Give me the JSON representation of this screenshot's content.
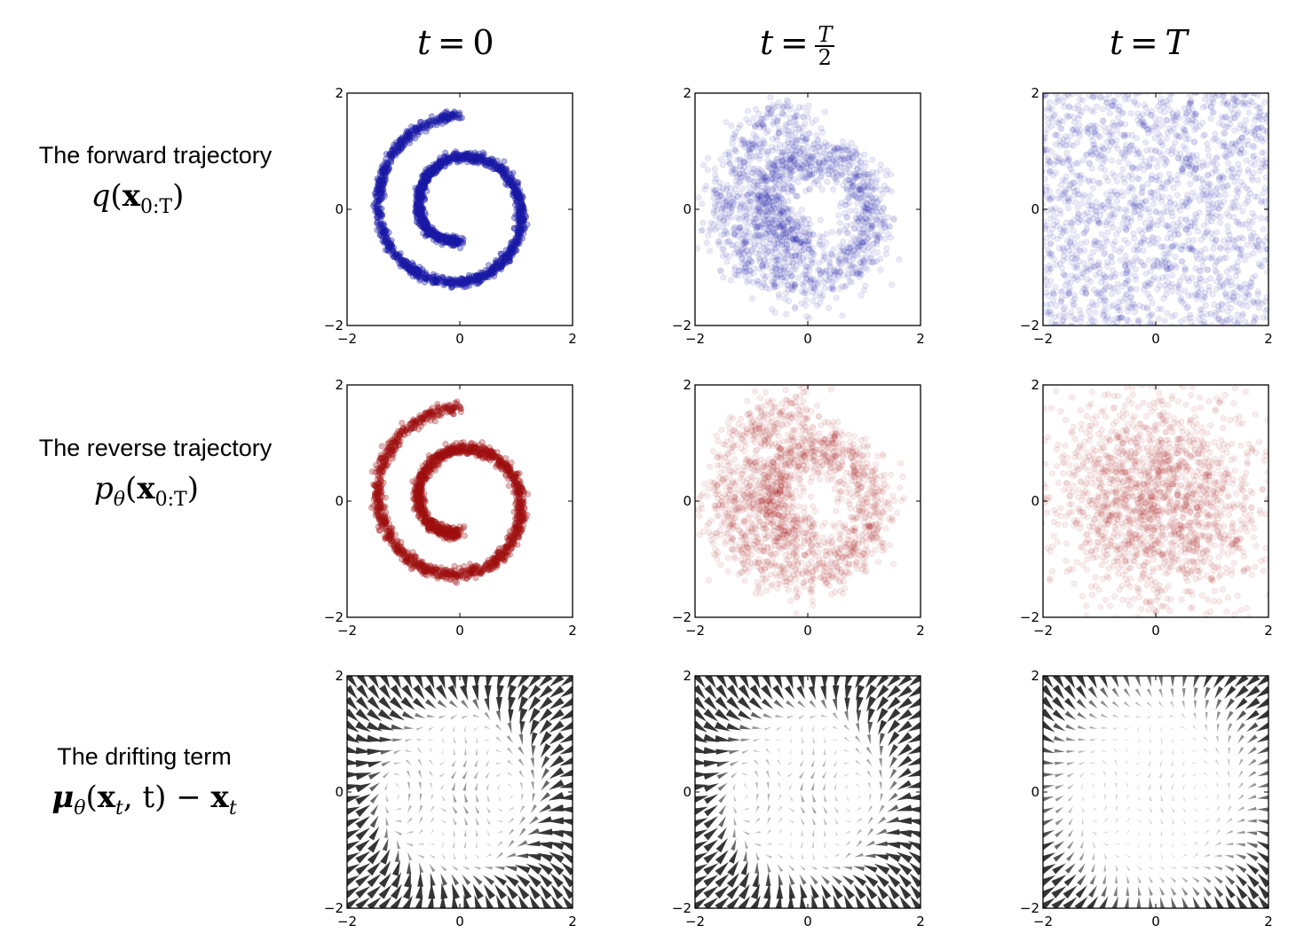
{
  "columns": [
    {
      "id": "t0",
      "var": "t",
      "eq": "=",
      "val": "0"
    },
    {
      "id": "thalf",
      "var": "t",
      "eq": "=",
      "frac_num": "T",
      "frac_den": "2"
    },
    {
      "id": "tT",
      "var": "t",
      "eq": "=",
      "val": "T"
    }
  ],
  "rows": [
    {
      "id": "forward",
      "label": "The forward trajectory",
      "math_fn": "q",
      "math_bold": "x",
      "math_sub": "0:T"
    },
    {
      "id": "reverse",
      "label": "The reverse trajectory",
      "math_fn": "p",
      "math_fn_sub": "θ",
      "math_bold": "x",
      "math_sub": "0:T"
    },
    {
      "id": "drift",
      "label": "The drifting term",
      "math_mu": "μ",
      "math_mu_sub": "θ",
      "math_bold": "x",
      "math_sub": "t",
      "math_args": ", t) − ",
      "math_bold2": "x",
      "math_sub2": "t"
    }
  ],
  "axis": {
    "xlim": [
      -2,
      2
    ],
    "ylim": [
      -2,
      2
    ],
    "xticks": [
      "−2",
      "0",
      "2"
    ],
    "yticks": [
      "−2",
      "0",
      "2"
    ],
    "xtick_values": [
      -2,
      0,
      2
    ],
    "ytick_values": [
      -2,
      0,
      2
    ]
  },
  "colors": {
    "forward": "#1a1aa6",
    "reverse": "#a01010",
    "drift": "#2a2a2a",
    "axes": "#000000"
  },
  "chart_data": [
    {
      "type": "scatter",
      "row": "forward",
      "col": "t = 0",
      "distribution": "swiss-roll spiral",
      "noise_sd": 0.04,
      "n_points": 1800,
      "point_alpha": 0.35
    },
    {
      "type": "scatter",
      "row": "forward",
      "col": "t = T/2",
      "distribution": "noisy swiss-roll spiral",
      "noise_sd": 0.22,
      "n_points": 1800,
      "point_alpha": 0.09
    },
    {
      "type": "scatter",
      "row": "forward",
      "col": "t = T",
      "distribution": "near-uniform noise",
      "noise_sd": 0.9,
      "n_points": 1800,
      "point_alpha": 0.09
    },
    {
      "type": "scatter",
      "row": "reverse",
      "col": "t = 0",
      "distribution": "swiss-roll spiral",
      "noise_sd": 0.05,
      "n_points": 1800,
      "point_alpha": 0.3
    },
    {
      "type": "scatter",
      "row": "reverse",
      "col": "t = T/2",
      "distribution": "noisy swiss-roll spiral",
      "noise_sd": 0.25,
      "n_points": 1800,
      "point_alpha": 0.08
    },
    {
      "type": "scatter",
      "row": "reverse",
      "col": "t = T",
      "distribution": "gaussian-like noise",
      "noise_sd": 0.9,
      "n_points": 1800,
      "point_alpha": 0.08
    },
    {
      "type": "quiver",
      "row": "drift",
      "col": "t = 0",
      "grid": [
        20,
        20
      ],
      "strength": 1.0
    },
    {
      "type": "quiver",
      "row": "drift",
      "col": "t = T/2",
      "grid": [
        20,
        20
      ],
      "strength": 0.85
    },
    {
      "type": "quiver",
      "row": "drift",
      "col": "t = T",
      "grid": [
        20,
        20
      ],
      "strength": 0.35
    }
  ]
}
